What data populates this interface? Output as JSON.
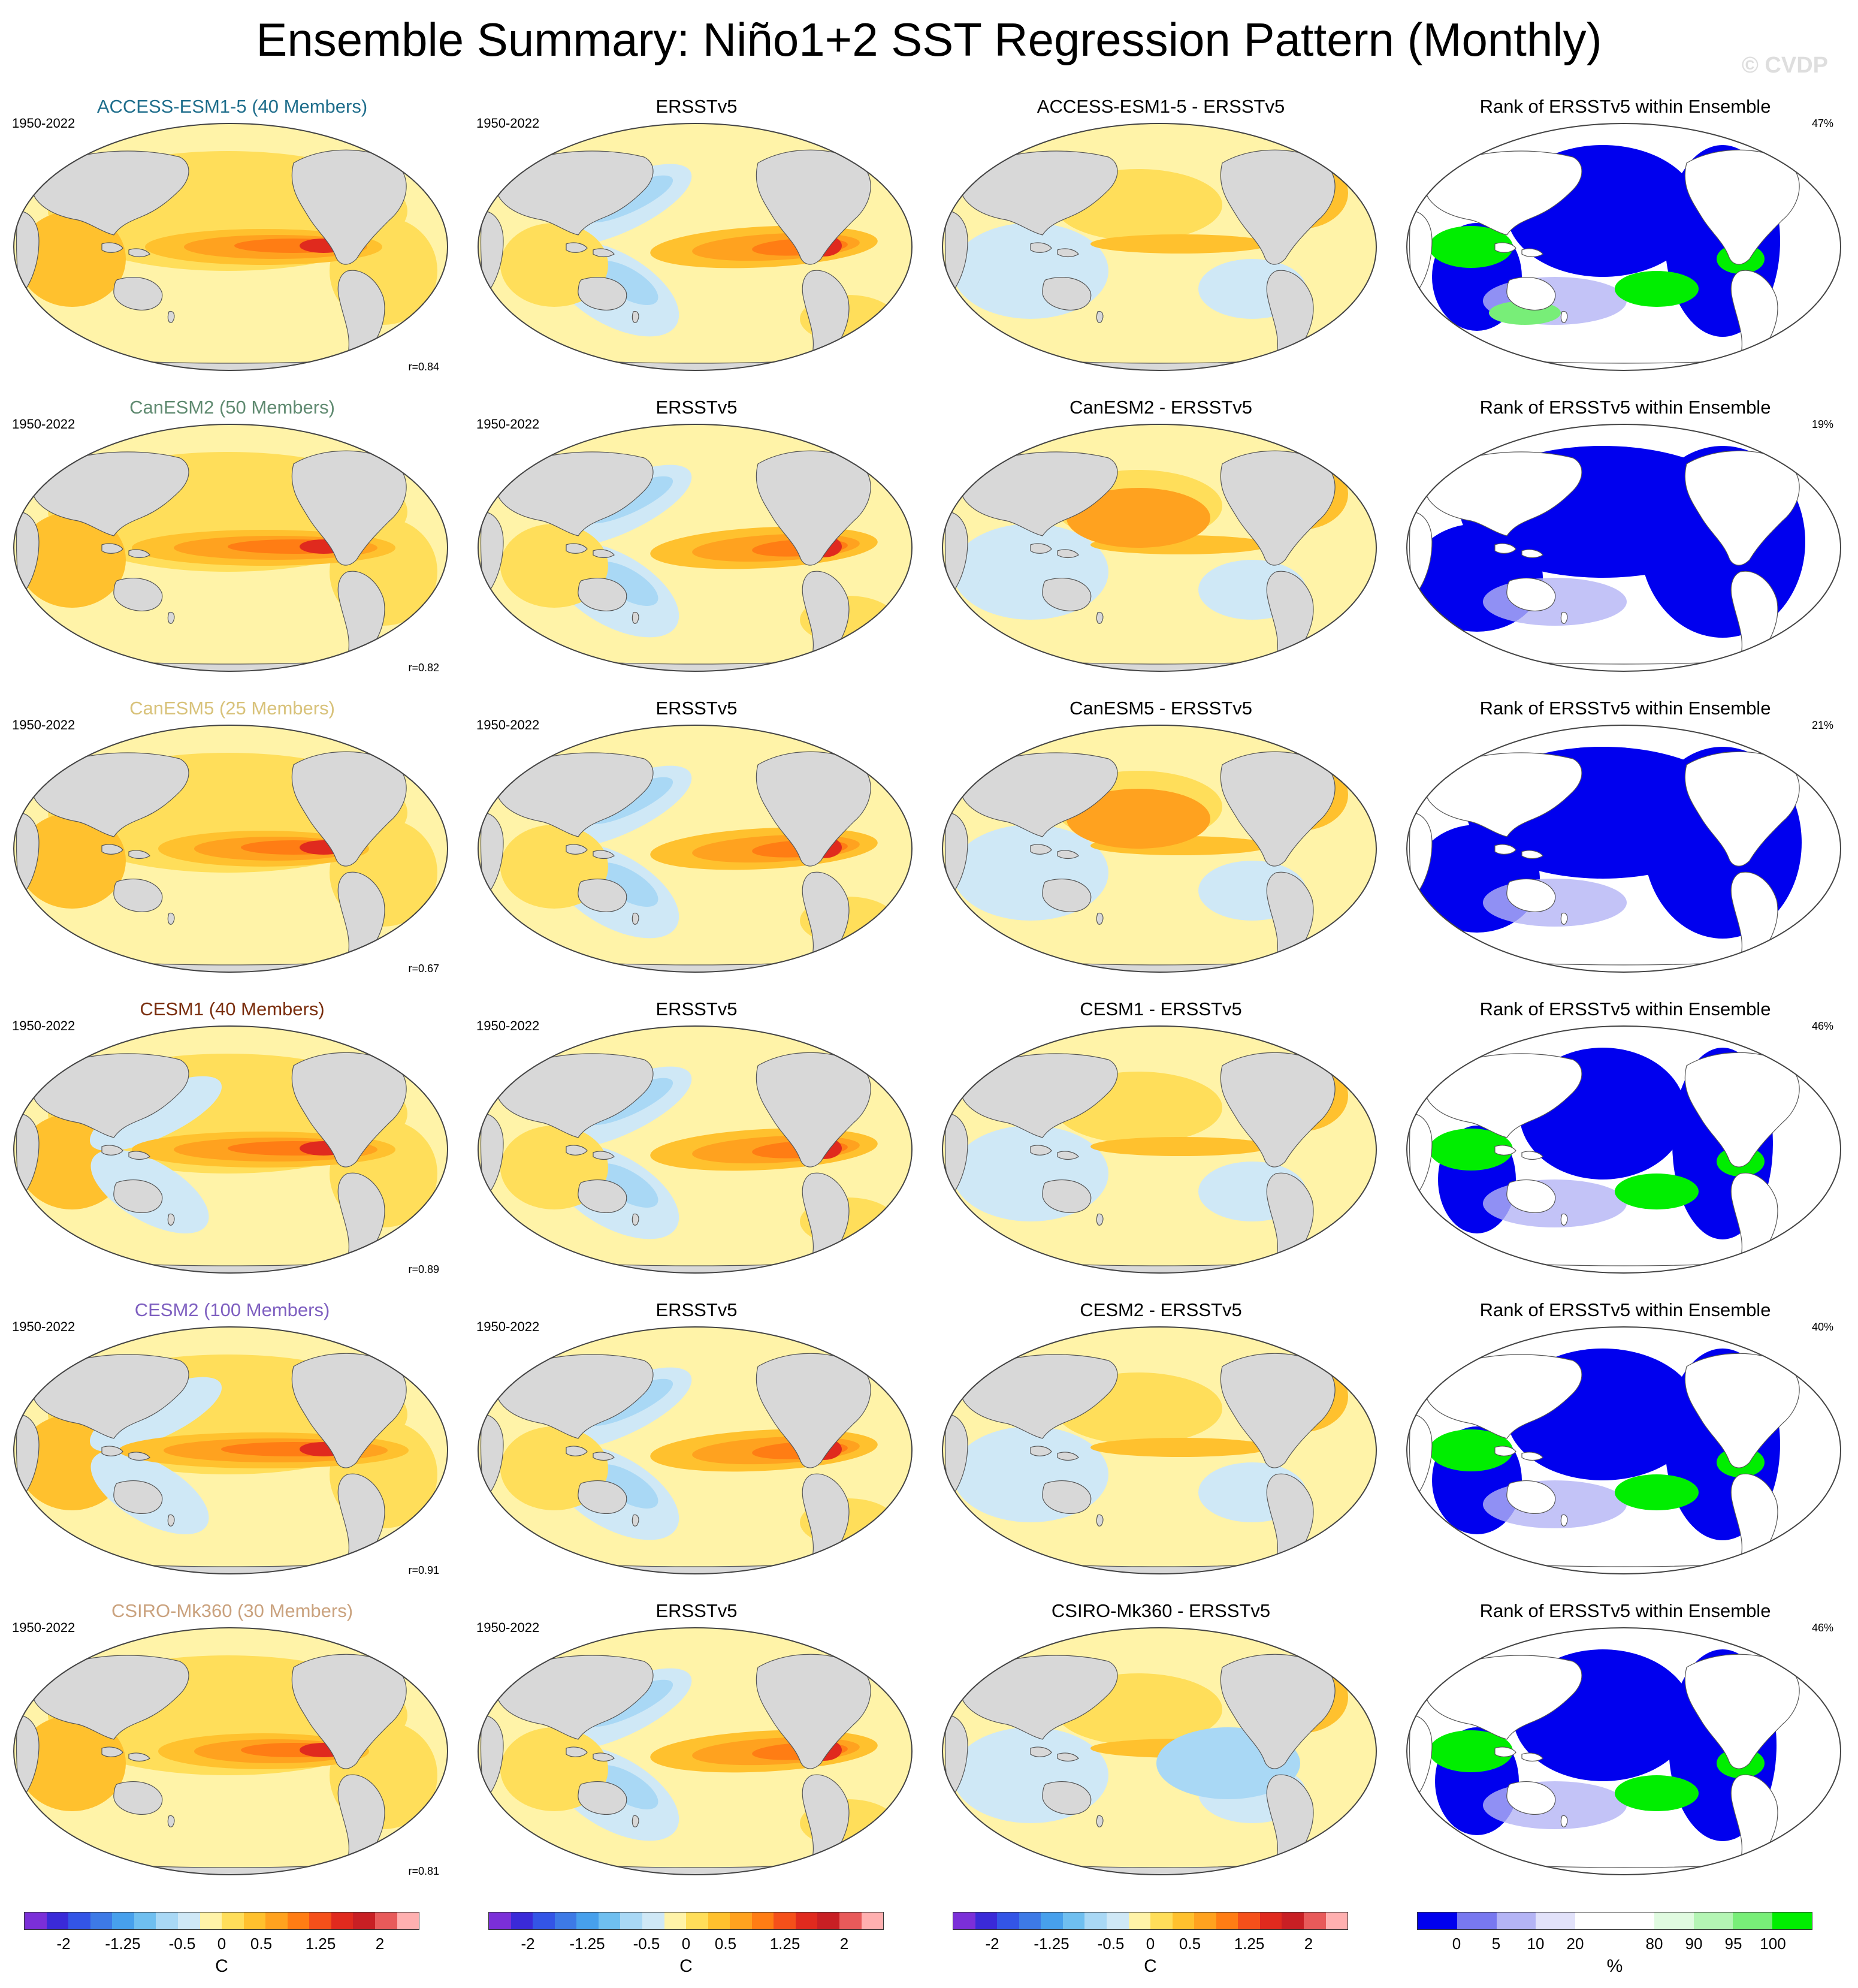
{
  "page": {
    "title": "Ensemble Summary: Niño1+2 SST Regression Pattern (Monthly)",
    "watermark": "© CVDP"
  },
  "rows": [
    {
      "ensemble": {
        "title": "ACCESS-ESM1-5 (40 Members)",
        "color": "#1f6e8c",
        "period": "1950-2022",
        "corr": "r=0.84"
      },
      "obs": {
        "title": "ERSSTv5",
        "period": "1950-2022"
      },
      "diff": {
        "title": "ACCESS-ESM1-5 - ERSSTv5"
      },
      "rank": {
        "title": "Rank of ERSSTv5 within Ensemble",
        "pct": "47%"
      }
    },
    {
      "ensemble": {
        "title": "CanESM2 (50 Members)",
        "color": "#5f8a70",
        "period": "1950-2022",
        "corr": "r=0.82"
      },
      "obs": {
        "title": "ERSSTv5",
        "period": "1950-2022"
      },
      "diff": {
        "title": "CanESM2 - ERSSTv5"
      },
      "rank": {
        "title": "Rank of ERSSTv5 within Ensemble",
        "pct": "19%"
      }
    },
    {
      "ensemble": {
        "title": "CanESM5 (25 Members)",
        "color": "#d8c27a",
        "period": "1950-2022",
        "corr": "r=0.67"
      },
      "obs": {
        "title": "ERSSTv5",
        "period": "1950-2022"
      },
      "diff": {
        "title": "CanESM5 - ERSSTv5"
      },
      "rank": {
        "title": "Rank of ERSSTv5 within Ensemble",
        "pct": "21%"
      }
    },
    {
      "ensemble": {
        "title": "CESM1 (40 Members)",
        "color": "#7a2e0e",
        "period": "1950-2022",
        "corr": "r=0.89"
      },
      "obs": {
        "title": "ERSSTv5",
        "period": "1950-2022"
      },
      "diff": {
        "title": "CESM1 - ERSSTv5"
      },
      "rank": {
        "title": "Rank of ERSSTv5 within Ensemble",
        "pct": "46%"
      }
    },
    {
      "ensemble": {
        "title": "CESM2 (100 Members)",
        "color": "#7e5fc0",
        "period": "1950-2022",
        "corr": "r=0.91"
      },
      "obs": {
        "title": "ERSSTv5",
        "period": "1950-2022"
      },
      "diff": {
        "title": "CESM2 - ERSSTv5"
      },
      "rank": {
        "title": "Rank of ERSSTv5 within Ensemble",
        "pct": "40%"
      }
    },
    {
      "ensemble": {
        "title": "CSIRO-Mk360 (30 Members)",
        "color": "#caa27e",
        "period": "1950-2022",
        "corr": "r=0.81"
      },
      "obs": {
        "title": "ERSSTv5",
        "period": "1950-2022"
      },
      "diff": {
        "title": "CSIRO-Mk360 - ERSSTv5"
      },
      "rank": {
        "title": "Rank of ERSSTv5 within Ensemble",
        "pct": "46%"
      }
    }
  ],
  "colorbars": {
    "sst": {
      "unit": "C",
      "ticks": [
        "-2",
        "-1.25",
        "-0.5",
        "0",
        "0.5",
        "1.25",
        "2"
      ],
      "tick_values": [
        -2,
        -1.25,
        -0.5,
        0,
        0.5,
        1.25,
        2
      ],
      "range": [
        -2.5,
        2.5
      ],
      "colors": [
        "#7b2fd8",
        "#3a2ad8",
        "#3355e6",
        "#3d7ae6",
        "#47a0ec",
        "#6fbff0",
        "#a9d8f5",
        "#cfe8f6",
        "#fff3a8",
        "#ffde5a",
        "#ffc12e",
        "#ffa21f",
        "#ff7d14",
        "#f5501a",
        "#e02a1e",
        "#c81f24",
        "#e85a5a",
        "#ffb0b0"
      ]
    },
    "rank": {
      "unit": "%",
      "ticks": [
        "0",
        "5",
        "10",
        "20",
        "80",
        "90",
        "95",
        "100"
      ],
      "colors": [
        "#0000ee",
        "#7878f0",
        "#b4b4f5",
        "#e2e2fa",
        "#ffffff",
        "#ffffff",
        "#e0fbe0",
        "#b4f5b4",
        "#78ee78",
        "#00ee00"
      ]
    }
  },
  "land_color": "#d8d8d8"
}
